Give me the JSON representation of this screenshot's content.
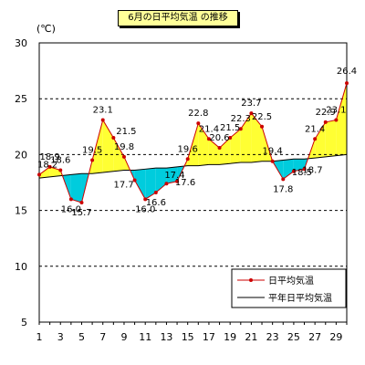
{
  "chart_data": {
    "type": "line",
    "title": "6月の日平均気温 の推移",
    "ylabel": "(℃)",
    "xlabel": "",
    "ylim": [
      5,
      30
    ],
    "yticks": [
      5,
      10,
      15,
      20,
      25,
      30
    ],
    "xlim": [
      1,
      30
    ],
    "x": [
      1,
      2,
      3,
      4,
      5,
      6,
      7,
      8,
      9,
      10,
      11,
      12,
      13,
      14,
      15,
      16,
      17,
      18,
      19,
      20,
      21,
      22,
      23,
      24,
      25,
      26,
      27,
      28,
      29,
      30
    ],
    "xtick_labels": [
      "1",
      "3",
      "5",
      "7",
      "9",
      "11",
      "13",
      "15",
      "17",
      "19",
      "21",
      "23",
      "25",
      "27",
      "29"
    ],
    "grid": "dashed horizontal",
    "legend_position": "bottom-right",
    "series": [
      {
        "name": "日平均気温",
        "color": "#cc0000",
        "values": [
          18.2,
          18.9,
          18.6,
          16.0,
          15.7,
          19.5,
          23.1,
          21.5,
          19.8,
          17.7,
          16.0,
          16.6,
          17.4,
          17.6,
          19.6,
          22.8,
          21.4,
          20.6,
          21.5,
          22.3,
          23.7,
          22.5,
          19.4,
          17.8,
          18.5,
          18.7,
          21.4,
          22.9,
          23.1,
          26.4
        ],
        "labels": [
          "18.2",
          "18.9",
          "18.6",
          "16.0",
          "15.7",
          "19.5",
          "23.1",
          "21.5",
          "19.8",
          "17.7",
          "16.0",
          "16.6",
          "17.4",
          "17.6",
          "19.6",
          "22.8",
          "21.4",
          "20.6",
          "21.5",
          "22.3",
          "23.7",
          "22.5",
          "19.4",
          "17.8",
          "18.5",
          "18.7",
          "21.4",
          "22.9",
          "23.1",
          "26.4"
        ]
      },
      {
        "name": "平年日平均気温",
        "color": "#000000",
        "values": [
          17.9,
          18.0,
          18.1,
          18.2,
          18.3,
          18.3,
          18.4,
          18.5,
          18.6,
          18.6,
          18.7,
          18.8,
          18.8,
          18.9,
          19.0,
          19.0,
          19.1,
          19.1,
          19.2,
          19.3,
          19.3,
          19.4,
          19.4,
          19.5,
          19.6,
          19.6,
          19.7,
          19.8,
          19.9,
          20.0
        ]
      }
    ],
    "fill_above_color": "#ffff33",
    "fill_below_color": "#00ccdd"
  }
}
